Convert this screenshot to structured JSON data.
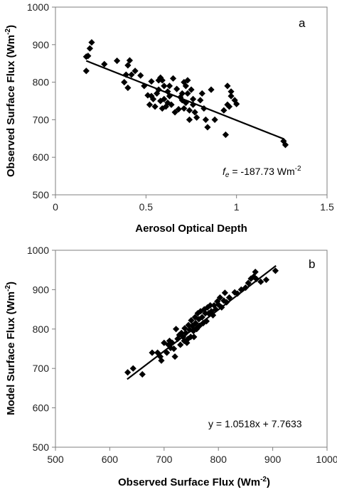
{
  "chart_data": [
    {
      "type": "scatter",
      "panel_label": "a",
      "xlabel": "Aerosol Optical Depth",
      "ylabel_main": "Observed Surface Flux (Wm",
      "ylabel_sup": "-2",
      "ylabel_close": ")",
      "xlim": [
        0,
        1.5
      ],
      "ylim": [
        500,
        1000
      ],
      "xticks": [
        "0",
        "0.5",
        "1",
        "1.5"
      ],
      "yticks": [
        "500",
        "600",
        "700",
        "800",
        "900",
        "1000"
      ],
      "annotation": {
        "prefix": "f",
        "sub": "e",
        "text": " = -187.73 Wm",
        "sup": "-2"
      },
      "trendline": {
        "x": [
          0.17,
          1.26
        ],
        "y": [
          857,
          649
        ]
      },
      "points": [
        [
          0.17,
          868
        ],
        [
          0.17,
          830
        ],
        [
          0.18,
          870
        ],
        [
          0.19,
          890
        ],
        [
          0.2,
          906
        ],
        [
          0.27,
          848
        ],
        [
          0.34,
          857
        ],
        [
          0.38,
          800
        ],
        [
          0.39,
          820
        ],
        [
          0.4,
          845
        ],
        [
          0.4,
          785
        ],
        [
          0.41,
          858
        ],
        [
          0.42,
          820
        ],
        [
          0.44,
          830
        ],
        [
          0.47,
          818
        ],
        [
          0.49,
          790
        ],
        [
          0.51,
          765
        ],
        [
          0.52,
          740
        ],
        [
          0.53,
          802
        ],
        [
          0.53,
          763
        ],
        [
          0.54,
          755
        ],
        [
          0.55,
          735
        ],
        [
          0.56,
          770
        ],
        [
          0.57,
          805
        ],
        [
          0.57,
          780
        ],
        [
          0.58,
          812
        ],
        [
          0.58,
          750
        ],
        [
          0.59,
          805
        ],
        [
          0.59,
          730
        ],
        [
          0.6,
          790
        ],
        [
          0.6,
          755
        ],
        [
          0.61,
          735
        ],
        [
          0.62,
          775
        ],
        [
          0.62,
          745
        ],
        [
          0.63,
          790
        ],
        [
          0.63,
          763
        ],
        [
          0.64,
          740
        ],
        [
          0.65,
          810
        ],
        [
          0.66,
          720
        ],
        [
          0.67,
          782
        ],
        [
          0.68,
          728
        ],
        [
          0.69,
          760
        ],
        [
          0.7,
          752
        ],
        [
          0.7,
          770
        ],
        [
          0.71,
          800
        ],
        [
          0.71,
          730
        ],
        [
          0.72,
          745
        ],
        [
          0.72,
          790
        ],
        [
          0.73,
          805
        ],
        [
          0.73,
          770
        ],
        [
          0.74,
          700
        ],
        [
          0.74,
          725
        ],
        [
          0.75,
          780
        ],
        [
          0.76,
          755
        ],
        [
          0.76,
          740
        ],
        [
          0.77,
          720
        ],
        [
          0.78,
          706
        ],
        [
          0.8,
          752
        ],
        [
          0.81,
          770
        ],
        [
          0.82,
          730
        ],
        [
          0.83,
          700
        ],
        [
          0.84,
          680
        ],
        [
          0.86,
          780
        ],
        [
          0.88,
          700
        ],
        [
          0.93,
          725
        ],
        [
          0.94,
          660
        ],
        [
          0.95,
          740
        ],
        [
          0.95,
          790
        ],
        [
          0.96,
          735
        ],
        [
          0.97,
          763
        ],
        [
          0.97,
          775
        ],
        [
          0.99,
          752
        ],
        [
          1.0,
          742
        ],
        [
          1.26,
          643
        ],
        [
          1.27,
          633
        ]
      ]
    },
    {
      "type": "scatter",
      "panel_label": "b",
      "xlabel_main": "Observed Surface Flux (Wm",
      "xlabel_sup": "-2",
      "xlabel_close": ")",
      "ylabel_main": "Model Surface Flux (Wm",
      "ylabel_sup": "-2",
      "ylabel_close": ")",
      "xlim": [
        500,
        1000
      ],
      "ylim": [
        500,
        1000
      ],
      "xticks": [
        "500",
        "600",
        "700",
        "800",
        "900",
        "1000"
      ],
      "yticks": [
        "500",
        "600",
        "700",
        "800",
        "900",
        "1000"
      ],
      "annotation": {
        "text": "y = 1.0518x + 7.7633"
      },
      "trendline": {
        "x": [
          632,
          906
        ],
        "y": [
          672.5,
          960.7
        ]
      },
      "points": [
        [
          633,
          690
        ],
        [
          643,
          700
        ],
        [
          660,
          685
        ],
        [
          678,
          740
        ],
        [
          688,
          740
        ],
        [
          693,
          730
        ],
        [
          695,
          720
        ],
        [
          700,
          765
        ],
        [
          705,
          740
        ],
        [
          708,
          760
        ],
        [
          710,
          770
        ],
        [
          712,
          752
        ],
        [
          715,
          765
        ],
        [
          718,
          750
        ],
        [
          720,
          730
        ],
        [
          722,
          800
        ],
        [
          725,
          775
        ],
        [
          728,
          785
        ],
        [
          730,
          760
        ],
        [
          732,
          790
        ],
        [
          735,
          780
        ],
        [
          737,
          770
        ],
        [
          738,
          802
        ],
        [
          740,
          790
        ],
        [
          742,
          765
        ],
        [
          744,
          775
        ],
        [
          745,
          810
        ],
        [
          747,
          798
        ],
        [
          749,
          780
        ],
        [
          750,
          822
        ],
        [
          752,
          808
        ],
        [
          754,
          795
        ],
        [
          755,
          780
        ],
        [
          757,
          830
        ],
        [
          758,
          815
        ],
        [
          760,
          800
        ],
        [
          762,
          840
        ],
        [
          764,
          825
        ],
        [
          765,
          808
        ],
        [
          767,
          845
        ],
        [
          770,
          830
        ],
        [
          772,
          815
        ],
        [
          774,
          850
        ],
        [
          776,
          840
        ],
        [
          778,
          820
        ],
        [
          780,
          855
        ],
        [
          782,
          840
        ],
        [
          785,
          860
        ],
        [
          787,
          845
        ],
        [
          790,
          835
        ],
        [
          792,
          860
        ],
        [
          795,
          850
        ],
        [
          798,
          870
        ],
        [
          800,
          862
        ],
        [
          803,
          880
        ],
        [
          806,
          855
        ],
        [
          810,
          872
        ],
        [
          812,
          892
        ],
        [
          815,
          868
        ],
        [
          820,
          880
        ],
        [
          830,
          893
        ],
        [
          835,
          890
        ],
        [
          842,
          900
        ],
        [
          850,
          905
        ],
        [
          855,
          917
        ],
        [
          860,
          928
        ],
        [
          865,
          933
        ],
        [
          868,
          945
        ],
        [
          870,
          927
        ],
        [
          878,
          920
        ],
        [
          888,
          925
        ],
        [
          905,
          948
        ]
      ]
    }
  ]
}
